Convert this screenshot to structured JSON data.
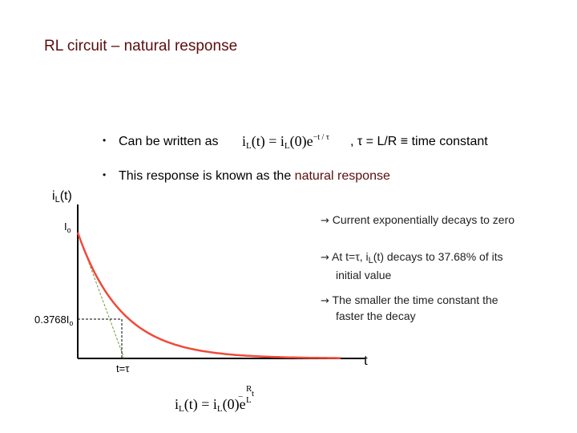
{
  "title": "RL circuit – natural response",
  "bullet1": {
    "dot": "•",
    "text": "Can be written as",
    "eq_lhs": "i",
    "eq_lhs_sub": "L",
    "eq_mid": "(t) = i",
    "eq_mid_sub": "L",
    "eq_rhs": "(0)e",
    "eq_exp": "−t / τ",
    "suffix": ", τ = L/R  ≡ time constant"
  },
  "bullet2": {
    "dot": "•",
    "text": "This response is known as the ",
    "highlight": "natural response"
  },
  "graph": {
    "y_label_main": "i",
    "y_label_sub": "L",
    "y_label_end": "(t)",
    "y_tick_top": "I",
    "y_tick_top_sub": "o",
    "y_tick_mid": "0.3768I",
    "y_tick_mid_sub": "o",
    "x_tick": "t=τ",
    "x_label": "t",
    "curve_color": "#f04a3a"
  },
  "notes": [
    {
      "arrow": "→",
      "text": "Current exponentially decays to zero"
    },
    {
      "arrow": "→",
      "text_a": "At t=τ, i",
      "text_sub": "L",
      "text_b": "(t) decays to 37.68% of its",
      "text_c": "initial value"
    },
    {
      "arrow": "→",
      "text_a": "The smaller the time constant the",
      "text_b": "faster the decay"
    }
  ],
  "formula_bottom": {
    "a": "i",
    "a_sub": "L",
    "b": "(t) = i",
    "b_sub": "L",
    "c": "(0)e",
    "exp_num": "R",
    "exp_t": "t",
    "exp_den": "L",
    "minus": "−"
  }
}
